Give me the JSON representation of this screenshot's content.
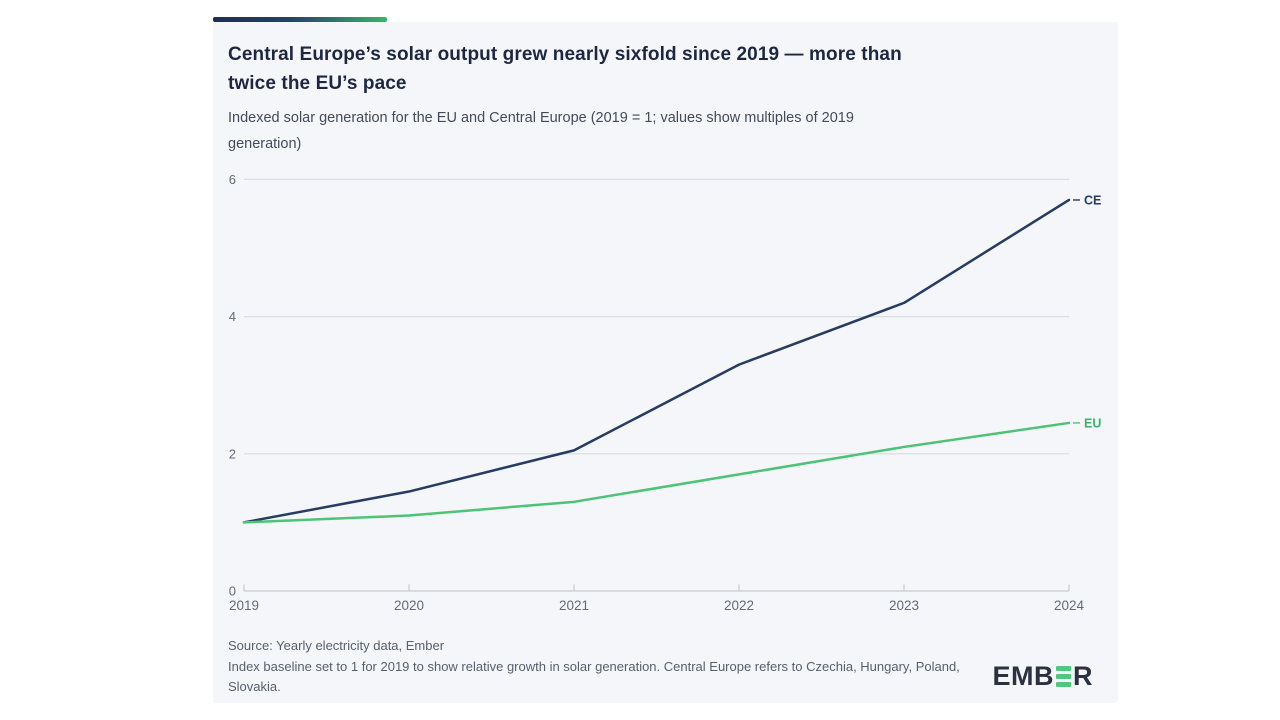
{
  "header": {
    "title_lines": [
      "Central Europe’s solar output grew nearly sixfold since 2019 — more than",
      "twice the EU’s pace"
    ],
    "subtitle_lines": [
      "Indexed solar generation for the EU and Central Europe (2019 = 1; values show multiples of 2019",
      "generation)"
    ]
  },
  "chart_data": {
    "type": "line",
    "title": "Central Europe’s solar output grew nearly sixfold since 2019 — more than twice the EU’s pace",
    "subtitle": "Indexed solar generation for the EU and Central Europe (2019 = 1; values show multiples of 2019 generation)",
    "x": [
      2019,
      2020,
      2021,
      2022,
      2023,
      2024
    ],
    "series": [
      {
        "name": "CE",
        "color": "#263c63",
        "label_color": "#263c63",
        "values": [
          1,
          1.45,
          2.05,
          3.3,
          4.2,
          5.7
        ]
      },
      {
        "name": "EU",
        "color": "#4dc475",
        "label_color": "#3cb368",
        "values": [
          1,
          1.1,
          1.3,
          1.7,
          2.1,
          2.45
        ]
      }
    ],
    "ylim": [
      0,
      6
    ],
    "yticks": [
      0,
      2,
      4,
      6
    ],
    "grid": true,
    "legend_position": "line-end-labels"
  },
  "footer": {
    "source": "Source: Yearly electricity data, Ember",
    "note": "Index baseline set to 1 for 2019 to show relative growth in solar generation. Central Europe refers to Czechia, Hungary, Poland, Slovakia."
  },
  "logo": {
    "name": "EMBER",
    "text_left": "EMB",
    "text_right": "R"
  },
  "colors": {
    "card_bg": "#f4f6f9",
    "accent_start": "#1d2e52",
    "accent_end": "#38b56c",
    "gridline": "#d9dce2",
    "axis_line": "#c7ccd4",
    "tick_label": "#636b7a",
    "logo_green": "#4ec97b"
  }
}
